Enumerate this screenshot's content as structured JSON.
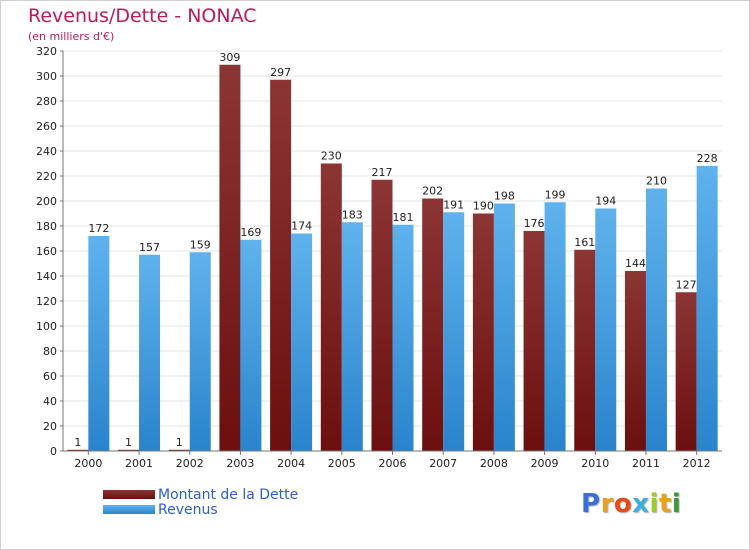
{
  "title": "Revenus/Dette - NONAC",
  "subtitle": "(en milliers d'€)",
  "logo": {
    "letters": [
      "P",
      "r",
      "o",
      "x",
      "i",
      "t",
      "i"
    ],
    "colors": [
      "#3a6fd8",
      "#e8a020",
      "#e84a1a",
      "#3ab0e0",
      "#9ccc2a",
      "#e8a020",
      "#3a9a3a"
    ]
  },
  "colors": {
    "dette_dark": "#6b0f0f",
    "dette_light": "#8c3535",
    "revenus_dark": "#2a84cc",
    "revenus_light": "#5fb2ec",
    "title": "#c2185b",
    "legend_text": "#2e5cd6"
  },
  "chart_data": {
    "type": "bar",
    "title": "Revenus/Dette - NONAC",
    "subtitle": "(en milliers d'€)",
    "categories": [
      "2000",
      "2001",
      "2002",
      "2003",
      "2004",
      "2005",
      "2006",
      "2007",
      "2008",
      "2009",
      "2010",
      "2011",
      "2012"
    ],
    "series": [
      {
        "name": "Montant de la Dette",
        "values": [
          1,
          1,
          1,
          309,
          297,
          230,
          217,
          202,
          190,
          176,
          161,
          144,
          127
        ]
      },
      {
        "name": "Revenus",
        "values": [
          172,
          157,
          159,
          169,
          174,
          183,
          181,
          191,
          198,
          199,
          194,
          210,
          228
        ]
      }
    ],
    "yticks": [
      0,
      20,
      40,
      60,
      80,
      100,
      120,
      140,
      160,
      180,
      200,
      220,
      240,
      260,
      280,
      300,
      320
    ],
    "ylim": [
      0,
      320
    ],
    "grid": true,
    "legend_position": "bottom-left",
    "xlabel": "",
    "ylabel": ""
  }
}
